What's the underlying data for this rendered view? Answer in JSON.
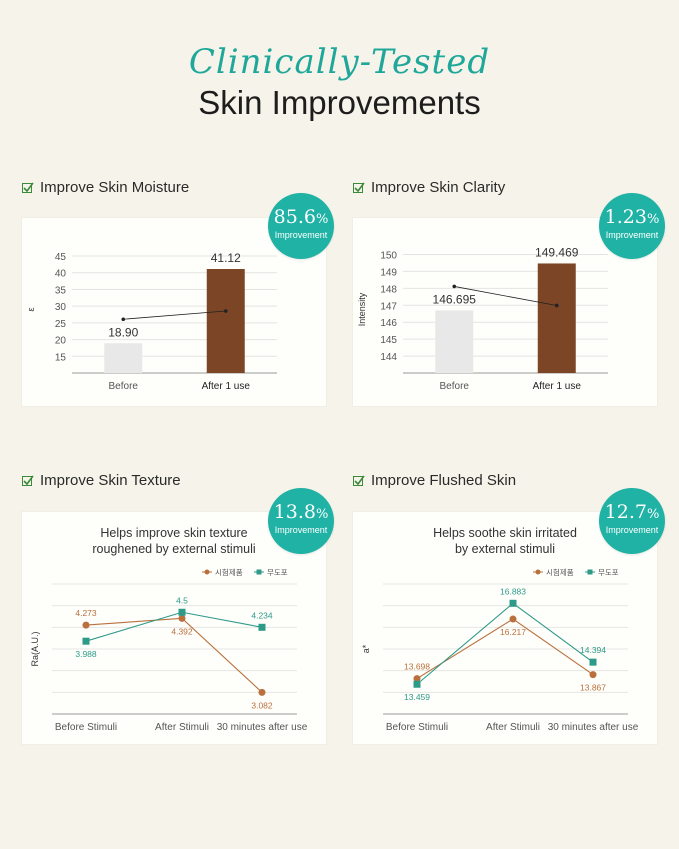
{
  "header": {
    "script_title": "Clinically-Tested",
    "title": "Skin Improvements"
  },
  "colors": {
    "teal": "#1fb2a5",
    "brown": "#7b4526",
    "light_bar": "#e8e8e8",
    "series_brown": "#b9703c",
    "series_teal": "#2e9a88"
  },
  "panels": [
    {
      "label": "Improve Skin Moisture",
      "badge": {
        "value": "85.6",
        "unit": "%",
        "text": "Improvement"
      }
    },
    {
      "label": "Improve Skin Clarity",
      "badge": {
        "value": "1.23",
        "unit": "%",
        "text": "Improvement"
      }
    },
    {
      "label": "Improve Skin Texture",
      "badge": {
        "value": "13.8",
        "unit": "%",
        "text": "Improvement"
      }
    },
    {
      "label": "Improve Flushed Skin",
      "badge": {
        "value": "12.7",
        "unit": "%",
        "text": "Improvement"
      }
    }
  ],
  "chart_data": [
    {
      "type": "bar",
      "title": "",
      "ylabel": "ε",
      "categories": [
        "Before",
        "After 1 use"
      ],
      "values": [
        18.9,
        41.12
      ],
      "value_labels": [
        "18.90",
        "41.12"
      ],
      "yticks": [
        15,
        20,
        25,
        30,
        35,
        40,
        45
      ],
      "ylim": [
        10,
        48
      ],
      "trend_line": true
    },
    {
      "type": "bar",
      "title": "",
      "ylabel": "Intensity",
      "categories": [
        "Before",
        "After 1 use"
      ],
      "values": [
        146.695,
        149.469
      ],
      "value_labels": [
        "146.695",
        "149.469"
      ],
      "yticks": [
        144,
        145,
        146,
        147,
        148,
        149,
        150
      ],
      "ylim": [
        143,
        150.5
      ],
      "trend_line": true
    },
    {
      "type": "line",
      "title": "Helps improve skin texture",
      "subtitle": "roughened by external stimuli",
      "ylabel": "Ra(A.U.)",
      "categories": [
        "Before Stimuli",
        "After Stimuli",
        "30 minutes after use"
      ],
      "series": [
        {
          "name": "시험제품",
          "values": [
            4.273,
            4.392,
            3.082
          ],
          "labels": [
            "4.273",
            "4.392",
            "3.082"
          ]
        },
        {
          "name": "무도포",
          "values": [
            3.988,
            4.5,
            4.234
          ],
          "labels": [
            "3.988",
            "4.5",
            "4.234"
          ]
        }
      ],
      "ylim": [
        2.7,
        5.0
      ],
      "grid": true,
      "legend": "top-right"
    },
    {
      "type": "line",
      "title": "Helps soothe skin irritated",
      "subtitle": "by external stimuli",
      "ylabel": "a*",
      "categories": [
        "Before Stimuli",
        "After Stimuli",
        "30 minutes after use"
      ],
      "series": [
        {
          "name": "시험제품",
          "values": [
            13.698,
            16.217,
            13.867
          ],
          "labels": [
            "13.698",
            "16.217",
            "13.867"
          ]
        },
        {
          "name": "무도포",
          "values": [
            13.459,
            16.883,
            14.394
          ],
          "labels": [
            "13.459",
            "16.883",
            "14.394"
          ]
        }
      ],
      "ylim": [
        12.2,
        17.7
      ],
      "grid": true,
      "legend": "top-right"
    }
  ]
}
